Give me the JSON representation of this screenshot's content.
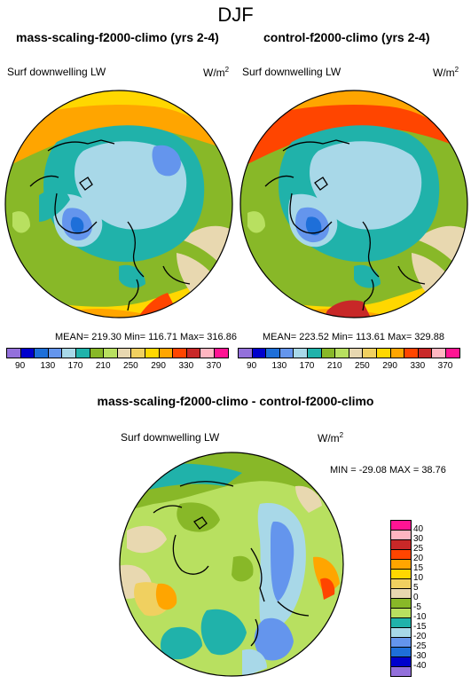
{
  "page": {
    "season_title": "DJF",
    "diff_title": "mass-scaling-f2000-climo - control-f2000-climo",
    "colors": {
      "outline": "#000000",
      "ocean_teal": "#20b2aa"
    }
  },
  "panels": [
    {
      "title": "mass-scaling-f2000-climo (yrs 2-4)",
      "variable": "Surf downwelling LW",
      "units": "W/m",
      "units_sup": "2",
      "stats": "MEAN= 219.30  Min= 116.71  Max= 316.86"
    },
    {
      "title": "control-f2000-climo (yrs 2-4)",
      "variable": "Surf downwelling LW",
      "units": "W/m",
      "units_sup": "2",
      "stats": "MEAN= 223.52  Min= 113.61  Max= 329.88"
    }
  ],
  "abs_colorbar": {
    "labels": [
      "90",
      "130",
      "170",
      "210",
      "250",
      "290",
      "330",
      "370"
    ],
    "colors": [
      "#9370db",
      "#0000cd",
      "#1e6fd9",
      "#6495ed",
      "#a8d8e8",
      "#20b2aa",
      "#88b828",
      "#b8e060",
      "#e8d8b0",
      "#f0d060",
      "#ffd700",
      "#ffa500",
      "#ff4500",
      "#c82828",
      "#ffb6c1",
      "#ff1493"
    ]
  },
  "diff_panel": {
    "variable": "Surf downwelling LW",
    "units": "W/m",
    "units_sup": "2",
    "stats": "MIN = -29.08 MAX =  38.76"
  },
  "diff_colorbar": {
    "labels": [
      "40",
      "30",
      "25",
      "20",
      "15",
      "10",
      "5",
      "0",
      "-5",
      "-10",
      "-15",
      "-20",
      "-25",
      "-30",
      "-40"
    ],
    "colors": [
      "#ff1493",
      "#ffb6c1",
      "#c82828",
      "#ff4500",
      "#ffa500",
      "#ffd700",
      "#f0d060",
      "#e8d8b0",
      "#88b828",
      "#b8e060",
      "#20b2aa",
      "#a8d8e8",
      "#6495ed",
      "#1e6fd9",
      "#0000cd",
      "#9370db"
    ]
  }
}
